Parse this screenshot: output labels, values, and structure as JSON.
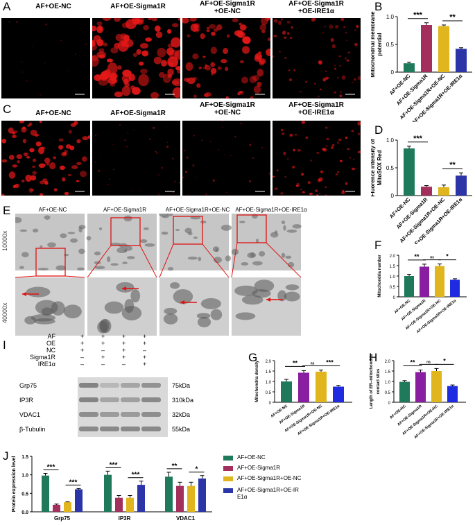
{
  "panel_labels": {
    "A": "A",
    "B": "B",
    "C": "C",
    "D": "D",
    "E": "E",
    "F": "F",
    "G": "G",
    "H": "H",
    "I": "I",
    "J": "J"
  },
  "groups_A": [
    "AF+OE-NC",
    "AF+OE-Sigma1R",
    "AF+OE-Sigma1R\n+OE-NC",
    "AF+OE-Sigma1R\n+OE-IRE1α"
  ],
  "groups_C": [
    "AF+OE-NC",
    "AF+OE-Sigma1R",
    "AF+OE-Sigma1R\n+OE-NC",
    "AF+OE-Sigma1R\n+OE-IRE1α"
  ],
  "groups_E": [
    "AF+OE-NC",
    "AF+OE-Sigma1R",
    "AF+OE-Sigma1R+OE-NC",
    "AF+OE-Sigma1R+OE-IRE1α"
  ],
  "mag_labels": [
    "10000x",
    "40000x"
  ],
  "blot": {
    "conditions": [
      "AF",
      "OE",
      "NC",
      "Sigma1R",
      "IRE1α"
    ],
    "signs": [
      [
        "+",
        "+",
        "+",
        "+"
      ],
      [
        "+",
        "+",
        "+",
        "+"
      ],
      [
        "+",
        "–",
        "+",
        "–"
      ],
      [
        "–",
        "+",
        "+",
        "+"
      ],
      [
        "–",
        "–",
        "–",
        "+"
      ]
    ],
    "proteins": [
      {
        "name": "Grp75",
        "kda": "75kDa"
      },
      {
        "name": "IP3R",
        "kda": "310kDa"
      },
      {
        "name": "VDAC1",
        "kda": "32kDa"
      },
      {
        "name": "β-Tubulin",
        "kda": "55kDa"
      }
    ]
  },
  "colors": {
    "nc": "#1e7a5a",
    "sigma1r": "#a3305c",
    "sigma1r_nc": "#e0b51e",
    "sigma1r_ire1a": "#2c35a8",
    "purple": "#8a1ea0",
    "blue": "#1f2be0"
  },
  "chart_data": [
    {
      "panel": "B",
      "type": "bar",
      "categories": [
        "AF+OE-NC",
        "AF+OE-Sigma1R",
        "AF+OE-Sigma1R+OE-NC",
        "AF+OE-Sigma1R+OE-IRE1α"
      ],
      "values": [
        0.16,
        0.85,
        0.83,
        0.42
      ],
      "errors": [
        0.02,
        0.04,
        0.02,
        0.02
      ],
      "ylabel": "Mitochondrial membrane\npotential",
      "ylim": [
        0,
        1.0
      ],
      "yticks": [
        0,
        0.5,
        1.0
      ],
      "sig": [
        {
          "from": 0,
          "to": 1,
          "label": "***"
        },
        {
          "from": 2,
          "to": 3,
          "label": "**"
        }
      ]
    },
    {
      "panel": "D",
      "type": "bar",
      "categories": [
        "AF+OE-NC",
        "AF+OE-Sigma1R",
        "AF+OE-Sigma1R+OE-NC",
        "AF+OE-Sigma1R+OE-IRE1α"
      ],
      "values": [
        0.85,
        0.16,
        0.15,
        0.36
      ],
      "errors": [
        0.04,
        0.02,
        0.04,
        0.05
      ],
      "ylabel": "Fluorence intensity of\nMitoSOX Red",
      "ylim": [
        0,
        1.0
      ],
      "yticks": [
        0,
        0.5,
        1.0
      ],
      "sig": [
        {
          "from": 0,
          "to": 1,
          "label": "***"
        },
        {
          "from": 2,
          "to": 3,
          "label": "**"
        }
      ]
    },
    {
      "panel": "F",
      "type": "bar",
      "categories": [
        "AF+OE-NC",
        "AF+OE-Sigma1R",
        "AF+OE-Sigma1R+OE-NC",
        "AF+OE-Sigma1R+OE-IRE1α"
      ],
      "values": [
        1.0,
        1.45,
        1.48,
        0.82
      ],
      "errors": [
        0.08,
        0.12,
        0.1,
        0.05
      ],
      "ylabel": "Mitochondria number",
      "ylim": [
        0,
        2.0
      ],
      "yticks": [
        0,
        0.5,
        1.0,
        1.5,
        2.0
      ],
      "sig": [
        {
          "from": 0,
          "to": 1,
          "label": "**"
        },
        {
          "from": 1,
          "to": 2,
          "label": "ns"
        },
        {
          "from": 2,
          "to": 3,
          "label": "*"
        }
      ]
    },
    {
      "panel": "G",
      "type": "bar",
      "categories": [
        "AF+OE-NC",
        "AF+OE-Sigma1R",
        "AF+OE-Sigma1R+OE-NC",
        "AF+OE-Sigma1R+OE-IRE1α"
      ],
      "values": [
        1.0,
        1.42,
        1.47,
        0.75
      ],
      "errors": [
        0.1,
        0.1,
        0.08,
        0.06
      ],
      "ylabel": "Mitochondria density",
      "ylim": [
        0,
        2.0
      ],
      "yticks": [
        0,
        0.5,
        1.0,
        1.5,
        2.0
      ],
      "sig": [
        {
          "from": 0,
          "to": 1,
          "label": "**"
        },
        {
          "from": 1,
          "to": 2,
          "label": "ns"
        },
        {
          "from": 2,
          "to": 3,
          "label": "***"
        }
      ]
    },
    {
      "panel": "H",
      "type": "bar",
      "categories": [
        "AF+OE-NC",
        "AF+OE-Sigma1R",
        "AF+OE-Sigma1R+OE-NC",
        "AF+OE-Sigma1R+OE-IRE1α"
      ],
      "values": [
        0.98,
        1.45,
        1.5,
        0.78
      ],
      "errors": [
        0.06,
        0.1,
        0.12,
        0.05
      ],
      "ylabel": "Length of ER–mitochondria\ncontact sites",
      "ylim": [
        0,
        2.0
      ],
      "yticks": [
        0,
        0.5,
        1.0,
        1.5,
        2.0
      ],
      "sig": [
        {
          "from": 0,
          "to": 1,
          "label": "**"
        },
        {
          "from": 1,
          "to": 2,
          "label": "ns"
        },
        {
          "from": 2,
          "to": 3,
          "label": "*"
        }
      ]
    },
    {
      "panel": "J",
      "type": "bar",
      "categories": [
        "Grp75",
        "IP3R",
        "VDAC1"
      ],
      "series": [
        {
          "name": "AF+OE-NC",
          "values": [
            0.98,
            1.0,
            0.95
          ],
          "errors": [
            0.06,
            0.1,
            0.12
          ]
        },
        {
          "name": "AF+OE-Sigma1R",
          "values": [
            0.19,
            0.38,
            0.7
          ],
          "errors": [
            0.02,
            0.06,
            0.1
          ]
        },
        {
          "name": "AF+OE-Sigma1R+OE-NC",
          "values": [
            0.26,
            0.38,
            0.7
          ],
          "errors": [
            0.01,
            0.06,
            0.1
          ]
        },
        {
          "name": "AF+OE-Sigma1R+OE-IR\nE1α",
          "values": [
            0.61,
            0.73,
            0.9
          ],
          "errors": [
            0.02,
            0.1,
            0.08
          ]
        }
      ],
      "ylabel": "Protein expression level",
      "ylim": [
        0,
        1.5
      ],
      "yticks": [
        0,
        0.5,
        1.0,
        1.5
      ],
      "sig": [
        [
          {
            "from": 0,
            "to": 1,
            "label": "***"
          },
          {
            "from": 2,
            "to": 3,
            "label": "***"
          }
        ],
        [
          {
            "from": 0,
            "to": 1,
            "label": "***"
          },
          {
            "from": 2,
            "to": 3,
            "label": "***"
          }
        ],
        [
          {
            "from": 0,
            "to": 1,
            "label": "**"
          },
          {
            "from": 2,
            "to": 3,
            "label": "*"
          }
        ]
      ]
    }
  ]
}
